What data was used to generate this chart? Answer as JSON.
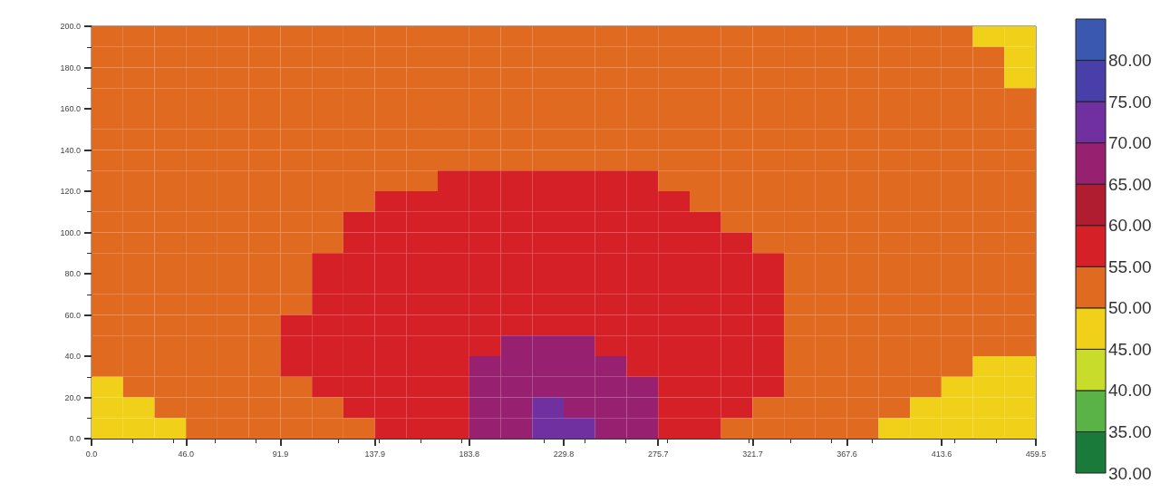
{
  "chart_data": {
    "type": "heatmap",
    "x": [
      7.7,
      23.0,
      38.3,
      53.6,
      68.9,
      84.2,
      99.6,
      114.9,
      130.2,
      145.5,
      160.8,
      176.1,
      191.5,
      206.8,
      222.1,
      237.4,
      252.7,
      268.0,
      283.4,
      298.7,
      314.0,
      329.3,
      344.6,
      359.9,
      375.3,
      390.6,
      405.9,
      421.2,
      436.5,
      451.8
    ],
    "y": [
      195,
      185,
      175,
      165,
      155,
      145,
      135,
      125,
      115,
      105,
      95,
      85,
      75,
      65,
      55,
      45,
      35,
      25,
      15,
      5
    ],
    "cells": [
      [
        52.5,
        52.5,
        52.5,
        52.5,
        52.5,
        52.5,
        52.5,
        52.5,
        52.5,
        52.5,
        52.5,
        52.5,
        52.5,
        52.5,
        52.5,
        52.5,
        52.5,
        52.5,
        52.5,
        52.5,
        52.5,
        52.5,
        52.5,
        52.5,
        52.5,
        52.5,
        52.5,
        52.5,
        47.5,
        47.5
      ],
      [
        52.5,
        52.5,
        52.5,
        52.5,
        52.5,
        52.5,
        52.5,
        52.5,
        52.5,
        52.5,
        52.5,
        52.5,
        52.5,
        52.5,
        52.5,
        52.5,
        52.5,
        52.5,
        52.5,
        52.5,
        52.5,
        52.5,
        52.5,
        52.5,
        52.5,
        52.5,
        52.5,
        52.5,
        52.5,
        47.5
      ],
      [
        52.5,
        52.5,
        52.5,
        52.5,
        52.5,
        52.5,
        52.5,
        52.5,
        52.5,
        52.5,
        52.5,
        52.5,
        52.5,
        52.5,
        52.5,
        52.5,
        52.5,
        52.5,
        52.5,
        52.5,
        52.5,
        52.5,
        52.5,
        52.5,
        52.5,
        52.5,
        52.5,
        52.5,
        52.5,
        47.5
      ],
      [
        52.5,
        52.5,
        52.5,
        52.5,
        52.5,
        52.5,
        52.5,
        52.5,
        52.5,
        52.5,
        52.5,
        52.5,
        52.5,
        52.5,
        52.5,
        52.5,
        52.5,
        52.5,
        52.5,
        52.5,
        52.5,
        52.5,
        52.5,
        52.5,
        52.5,
        52.5,
        52.5,
        52.5,
        52.5,
        52.5
      ],
      [
        52.5,
        52.5,
        52.5,
        52.5,
        52.5,
        52.5,
        52.5,
        52.5,
        52.5,
        52.5,
        52.5,
        52.5,
        52.5,
        52.5,
        52.5,
        52.5,
        52.5,
        52.5,
        52.5,
        52.5,
        52.5,
        52.5,
        52.5,
        52.5,
        52.5,
        52.5,
        52.5,
        52.5,
        52.5,
        52.5
      ],
      [
        52.5,
        52.5,
        52.5,
        52.5,
        52.5,
        52.5,
        52.5,
        52.5,
        52.5,
        52.5,
        52.5,
        52.5,
        52.5,
        52.5,
        52.5,
        52.5,
        52.5,
        52.5,
        52.5,
        52.5,
        52.5,
        52.5,
        52.5,
        52.5,
        52.5,
        52.5,
        52.5,
        52.5,
        52.5,
        52.5
      ],
      [
        52.5,
        52.5,
        52.5,
        52.5,
        52.5,
        52.5,
        52.5,
        52.5,
        52.5,
        52.5,
        52.5,
        52.5,
        52.5,
        52.5,
        52.5,
        52.5,
        52.5,
        52.5,
        52.5,
        52.5,
        52.5,
        52.5,
        52.5,
        52.5,
        52.5,
        52.5,
        52.5,
        52.5,
        52.5,
        52.5
      ],
      [
        52.5,
        52.5,
        52.5,
        52.5,
        52.5,
        52.5,
        52.5,
        52.5,
        52.5,
        52.5,
        52.5,
        57.5,
        57.5,
        57.5,
        57.5,
        57.5,
        57.5,
        57.5,
        52.5,
        52.5,
        52.5,
        52.5,
        52.5,
        52.5,
        52.5,
        52.5,
        52.5,
        52.5,
        52.5,
        52.5
      ],
      [
        52.5,
        52.5,
        52.5,
        52.5,
        52.5,
        52.5,
        52.5,
        52.5,
        52.5,
        57.5,
        57.5,
        57.5,
        57.5,
        57.5,
        57.5,
        57.5,
        57.5,
        57.5,
        57.5,
        52.5,
        52.5,
        52.5,
        52.5,
        52.5,
        52.5,
        52.5,
        52.5,
        52.5,
        52.5,
        52.5
      ],
      [
        52.5,
        52.5,
        52.5,
        52.5,
        52.5,
        52.5,
        52.5,
        52.5,
        57.5,
        57.5,
        57.5,
        57.5,
        57.5,
        57.5,
        57.5,
        57.5,
        57.5,
        57.5,
        57.5,
        57.5,
        52.5,
        52.5,
        52.5,
        52.5,
        52.5,
        52.5,
        52.5,
        52.5,
        52.5,
        52.5
      ],
      [
        52.5,
        52.5,
        52.5,
        52.5,
        52.5,
        52.5,
        52.5,
        52.5,
        57.5,
        57.5,
        57.5,
        57.5,
        57.5,
        57.5,
        57.5,
        57.5,
        57.5,
        57.5,
        57.5,
        57.5,
        57.5,
        52.5,
        52.5,
        52.5,
        52.5,
        52.5,
        52.5,
        52.5,
        52.5,
        52.5
      ],
      [
        52.5,
        52.5,
        52.5,
        52.5,
        52.5,
        52.5,
        52.5,
        57.5,
        57.5,
        57.5,
        57.5,
        57.5,
        57.5,
        57.5,
        57.5,
        57.5,
        57.5,
        57.5,
        57.5,
        57.5,
        57.5,
        57.5,
        52.5,
        52.5,
        52.5,
        52.5,
        52.5,
        52.5,
        52.5,
        52.5
      ],
      [
        52.5,
        52.5,
        52.5,
        52.5,
        52.5,
        52.5,
        52.5,
        57.5,
        57.5,
        57.5,
        57.5,
        57.5,
        57.5,
        57.5,
        57.5,
        57.5,
        57.5,
        57.5,
        57.5,
        57.5,
        57.5,
        57.5,
        52.5,
        52.5,
        52.5,
        52.5,
        52.5,
        52.5,
        52.5,
        52.5
      ],
      [
        52.5,
        52.5,
        52.5,
        52.5,
        52.5,
        52.5,
        52.5,
        57.5,
        57.5,
        57.5,
        57.5,
        57.5,
        57.5,
        57.5,
        57.5,
        57.5,
        57.5,
        57.5,
        57.5,
        57.5,
        57.5,
        57.5,
        52.5,
        52.5,
        52.5,
        52.5,
        52.5,
        52.5,
        52.5,
        52.5
      ],
      [
        52.5,
        52.5,
        52.5,
        52.5,
        52.5,
        52.5,
        57.5,
        57.5,
        57.5,
        57.5,
        57.5,
        57.5,
        57.5,
        57.5,
        57.5,
        57.5,
        57.5,
        57.5,
        57.5,
        57.5,
        57.5,
        57.5,
        52.5,
        52.5,
        52.5,
        52.5,
        52.5,
        52.5,
        52.5,
        52.5
      ],
      [
        52.5,
        52.5,
        52.5,
        52.5,
        52.5,
        52.5,
        57.5,
        57.5,
        57.5,
        57.5,
        57.5,
        57.5,
        57.5,
        67.5,
        67.5,
        67.5,
        57.5,
        57.5,
        57.5,
        57.5,
        57.5,
        57.5,
        52.5,
        52.5,
        52.5,
        52.5,
        52.5,
        52.5,
        52.5,
        52.5
      ],
      [
        52.5,
        52.5,
        52.5,
        52.5,
        52.5,
        52.5,
        57.5,
        57.5,
        57.5,
        57.5,
        57.5,
        57.5,
        67.5,
        67.5,
        67.5,
        67.5,
        67.5,
        57.5,
        57.5,
        57.5,
        57.5,
        57.5,
        52.5,
        52.5,
        52.5,
        52.5,
        52.5,
        52.5,
        47.5,
        47.5
      ],
      [
        47.5,
        52.5,
        52.5,
        52.5,
        52.5,
        52.5,
        52.5,
        57.5,
        57.5,
        57.5,
        57.5,
        57.5,
        67.5,
        67.5,
        67.5,
        67.5,
        67.5,
        67.5,
        57.5,
        57.5,
        57.5,
        57.5,
        52.5,
        52.5,
        52.5,
        52.5,
        52.5,
        47.5,
        47.5,
        47.5
      ],
      [
        47.5,
        47.5,
        52.5,
        52.5,
        52.5,
        52.5,
        52.5,
        52.5,
        57.5,
        57.5,
        57.5,
        57.5,
        67.5,
        67.5,
        72.5,
        67.5,
        67.5,
        67.5,
        57.5,
        57.5,
        57.5,
        52.5,
        52.5,
        52.5,
        52.5,
        52.5,
        47.5,
        47.5,
        47.5,
        47.5
      ],
      [
        47.5,
        47.5,
        47.5,
        52.5,
        52.5,
        52.5,
        52.5,
        52.5,
        52.5,
        57.5,
        57.5,
        57.5,
        67.5,
        67.5,
        72.5,
        72.5,
        67.5,
        67.5,
        57.5,
        57.5,
        52.5,
        52.5,
        52.5,
        52.5,
        52.5,
        47.5,
        47.5,
        47.5,
        47.5,
        47.5
      ]
    ],
    "xlim": [
      0,
      459.5
    ],
    "xticks": [
      {
        "value": 0,
        "label": "0.0"
      },
      {
        "value": 46,
        "label": "46.0"
      },
      91.9,
      137.9,
      183.8,
      229.8,
      275.7,
      321.7,
      367.6,
      413.6,
      459.5
    ],
    "ylim": [
      0,
      200
    ],
    "yticks": [
      {
        "value": 0,
        "label": "0.0"
      },
      {
        "value": 20,
        "label": "20.0"
      },
      {
        "value": 40,
        "label": "40.0"
      },
      {
        "value": 60,
        "label": "60.0"
      },
      {
        "value": 80,
        "label": "80.0"
      },
      {
        "value": 100,
        "label": "100.0"
      },
      {
        "value": 120,
        "label": "120.0"
      },
      {
        "value": 140,
        "label": "140.0"
      },
      {
        "value": 160,
        "label": "160.0"
      },
      {
        "value": 180,
        "label": "180.0"
      },
      {
        "value": 200,
        "label": "200.0"
      }
    ],
    "clim": [
      30,
      85
    ],
    "cticks": [
      {
        "value": 30,
        "label": "30.00"
      },
      {
        "value": 35,
        "label": "35.00"
      },
      {
        "value": 40,
        "label": "40.00"
      },
      {
        "value": 45,
        "label": "45.00"
      },
      {
        "value": 50,
        "label": "50.00"
      },
      {
        "value": 55,
        "label": "55.00"
      },
      {
        "value": 60,
        "label": "60.00"
      },
      {
        "value": 65,
        "label": "65.00"
      },
      {
        "value": 70,
        "label": "70.00"
      },
      {
        "value": 75,
        "label": "75.00"
      },
      {
        "value": 80,
        "label": "80.00"
      }
    ],
    "colors": [
      "#1a7a3a",
      "#5ab347",
      "#c8dc2c",
      "#f0d018",
      "#e06a20",
      "#d42026",
      "#b01c30",
      "#982070",
      "#7030a0",
      "#4840a8",
      "#3a58b0"
    ]
  }
}
